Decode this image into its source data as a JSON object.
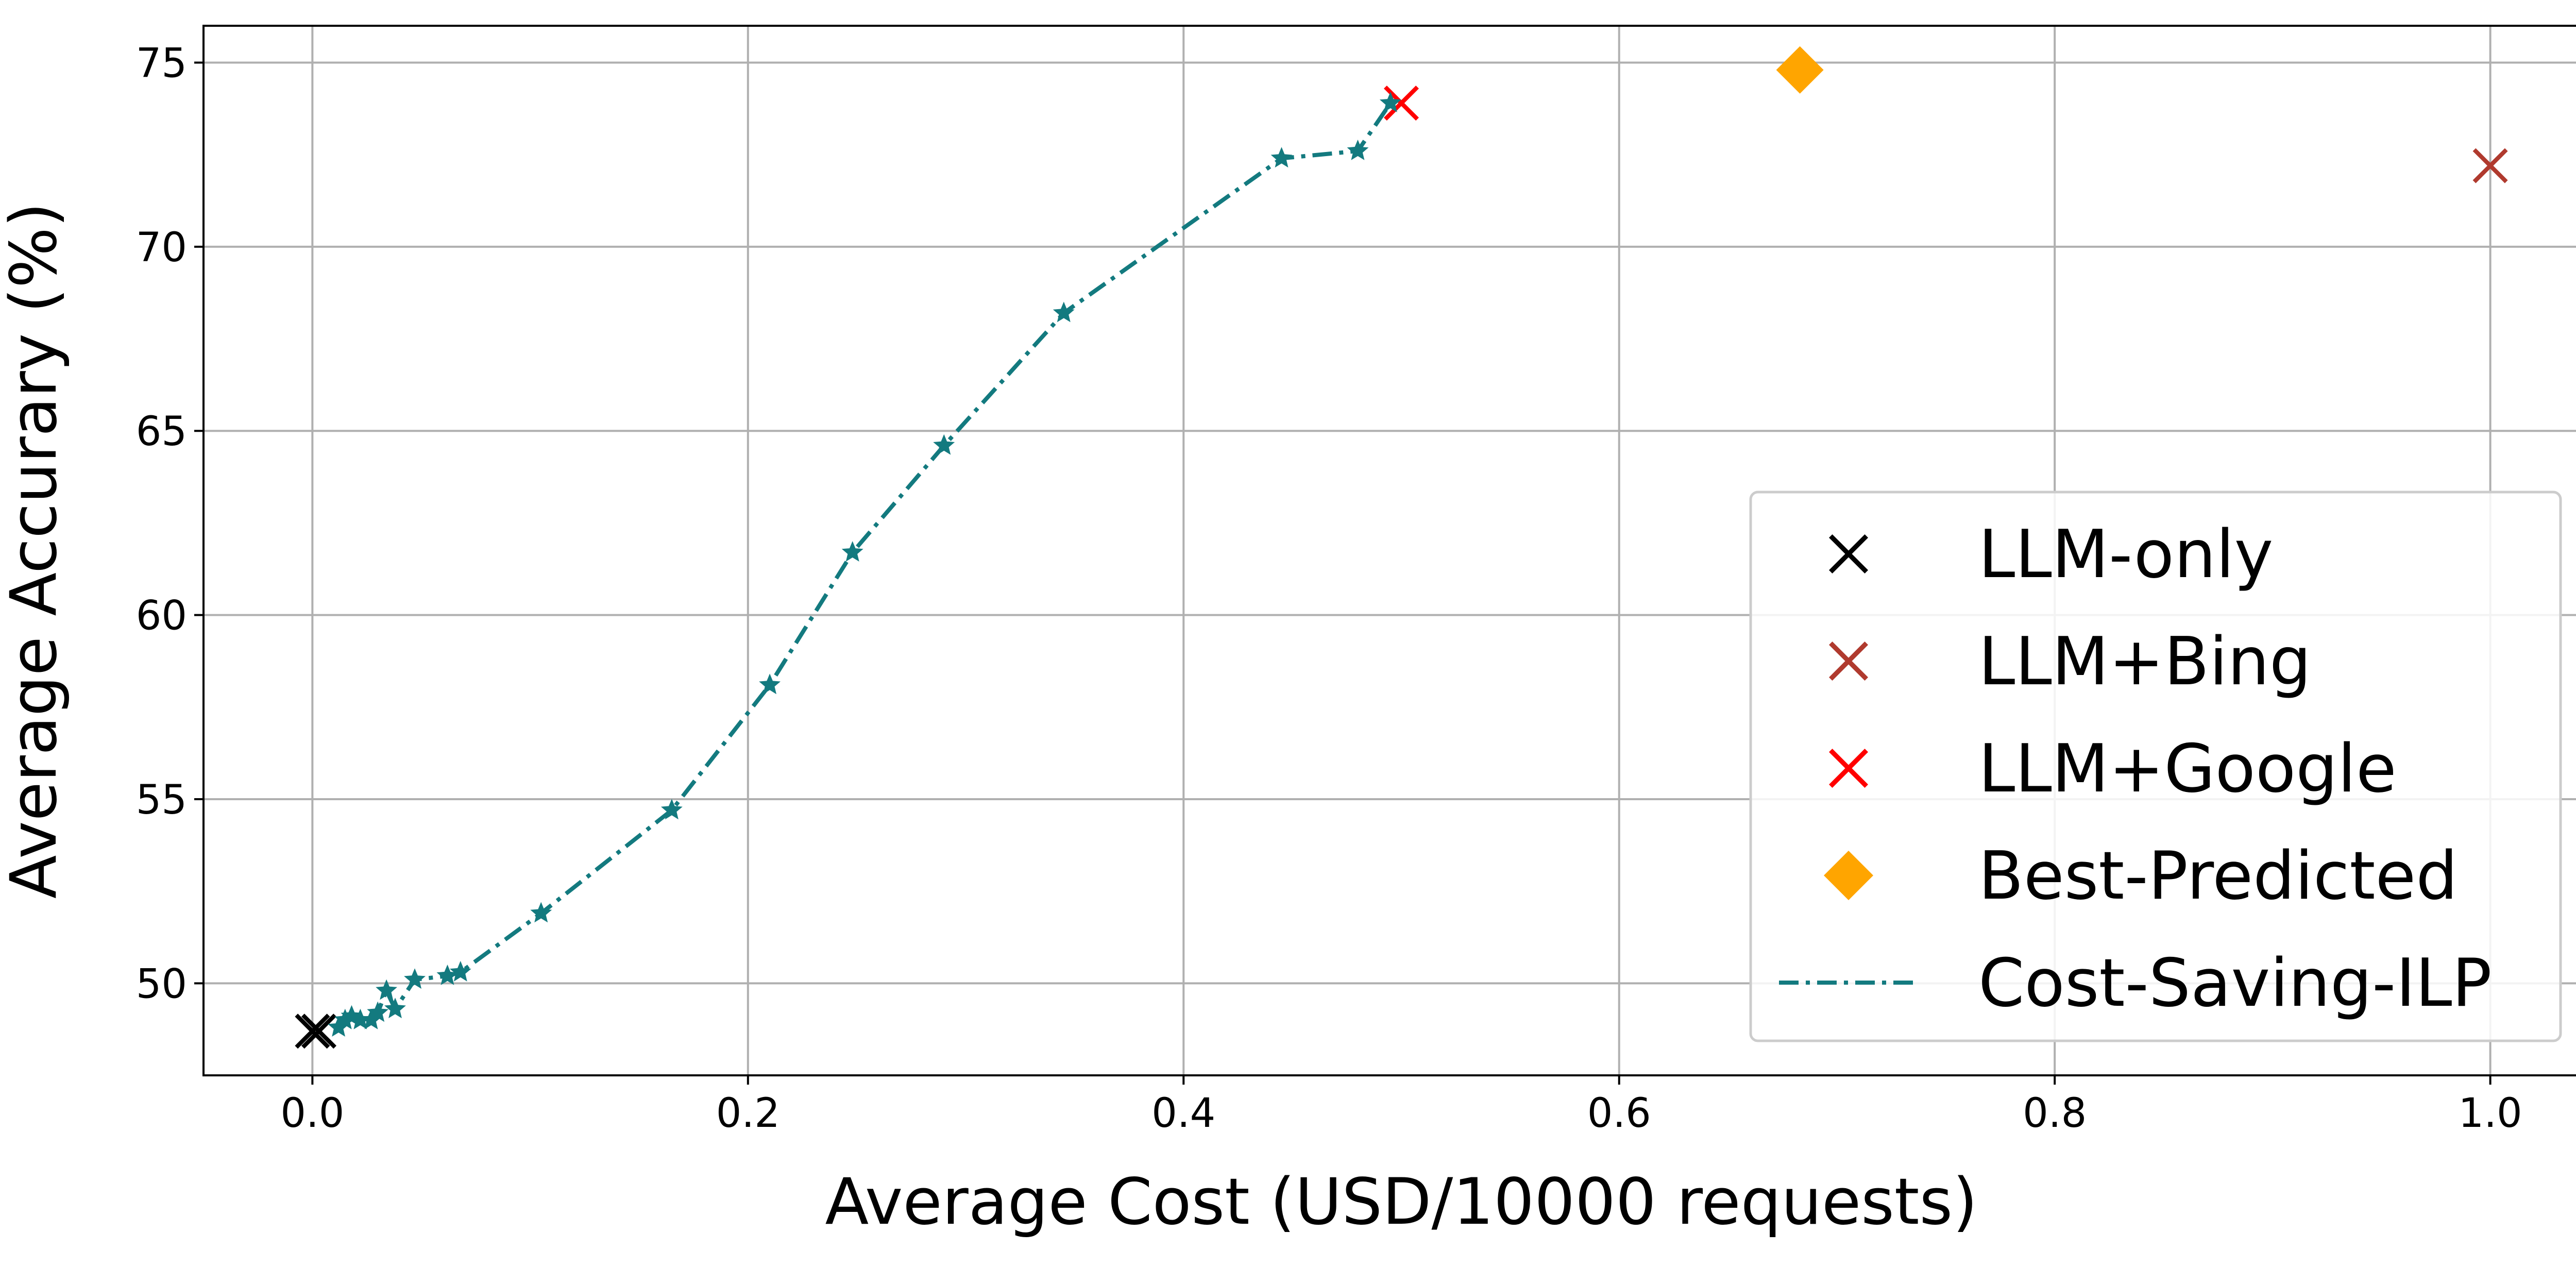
{
  "chart_data": {
    "type": "scatter",
    "title": "",
    "xlabel": "Average Cost (USD/10000 requests)",
    "ylabel": "Average Accurary (%)",
    "xlim": [
      -0.05,
      1.05
    ],
    "ylim": [
      47.5,
      76.0
    ],
    "x_ticks": [
      0.0,
      0.2,
      0.4,
      0.6,
      0.8,
      1.0
    ],
    "x_tick_labels": [
      "0.0",
      "0.2",
      "0.4",
      "0.6",
      "0.8",
      "1.0"
    ],
    "y_ticks": [
      50,
      55,
      60,
      65,
      70,
      75
    ],
    "y_tick_labels": [
      "50",
      "55",
      "60",
      "65",
      "70",
      "75"
    ],
    "grid": true,
    "legend_position": "lower-right",
    "series": [
      {
        "name": "LLM-only",
        "kind": "marker",
        "marker": "x-filled",
        "color": "#000000",
        "points": [
          [
            0.0,
            48.7
          ],
          [
            0.003,
            48.7
          ]
        ]
      },
      {
        "name": "LLM+Bing",
        "kind": "marker",
        "marker": "x-filled",
        "color": "#b03a2e",
        "points": [
          [
            1.0,
            72.2
          ]
        ]
      },
      {
        "name": "LLM+Google",
        "kind": "marker",
        "marker": "x-filled",
        "color": "#ff0000",
        "points": [
          [
            0.5,
            73.9
          ]
        ]
      },
      {
        "name": "Best-Predicted",
        "kind": "marker",
        "marker": "diamond",
        "color": "#ffa500",
        "points": [
          [
            0.683,
            74.8
          ]
        ]
      },
      {
        "name": "Cost-Saving-ILP",
        "kind": "line",
        "line_style": "dash-dot",
        "marker": "star",
        "color": "#137a7f",
        "points": [
          [
            0.012,
            48.8
          ],
          [
            0.015,
            49.0
          ],
          [
            0.018,
            49.1
          ],
          [
            0.022,
            49.0
          ],
          [
            0.027,
            49.0
          ],
          [
            0.03,
            49.2
          ],
          [
            0.034,
            49.8
          ],
          [
            0.038,
            49.3
          ],
          [
            0.047,
            50.1
          ],
          [
            0.062,
            50.2
          ],
          [
            0.068,
            50.3
          ],
          [
            0.105,
            51.9
          ],
          [
            0.165,
            54.7
          ],
          [
            0.21,
            58.1
          ],
          [
            0.248,
            61.7
          ],
          [
            0.29,
            64.6
          ],
          [
            0.345,
            68.2
          ],
          [
            0.445,
            72.4
          ],
          [
            0.48,
            72.6
          ],
          [
            0.495,
            73.9
          ]
        ]
      }
    ]
  }
}
